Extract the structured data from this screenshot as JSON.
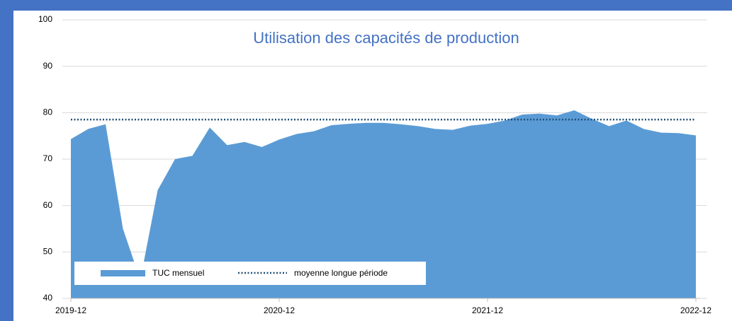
{
  "chart_data": {
    "type": "area",
    "title": "Utilisation des capacités de production",
    "categories": [
      "2019-12",
      null,
      null,
      null,
      null,
      null,
      null,
      null,
      null,
      null,
      null,
      null,
      "2020-12",
      null,
      null,
      null,
      null,
      null,
      null,
      null,
      null,
      null,
      null,
      null,
      "2021-12",
      null,
      null,
      null,
      null,
      null,
      null,
      null,
      null,
      null,
      null,
      null,
      "2022-12"
    ],
    "series": [
      {
        "name": "TUC mensuel",
        "color": "#5b9bd5",
        "values": [
          74.3,
          76.5,
          77.5,
          55,
          44,
          63.3,
          70,
          70.7,
          76.8,
          73,
          73.7,
          72.6,
          74.2,
          75.4,
          76,
          77.3,
          77.6,
          77.8,
          77.8,
          77.5,
          77.1,
          76.5,
          76.3,
          77.2,
          77.6,
          78.3,
          79.6,
          79.8,
          79.4,
          80.5,
          78.7,
          77.1,
          78.3,
          76.5,
          75.7,
          75.6,
          75.1
        ]
      },
      {
        "name": "moyenne longue période",
        "color": "#1f4e79",
        "value": 78.5,
        "style": "dotted"
      }
    ],
    "ylim": [
      40,
      100
    ],
    "yticks": [
      40,
      50,
      60,
      70,
      80,
      90,
      100
    ],
    "grid": true
  }
}
